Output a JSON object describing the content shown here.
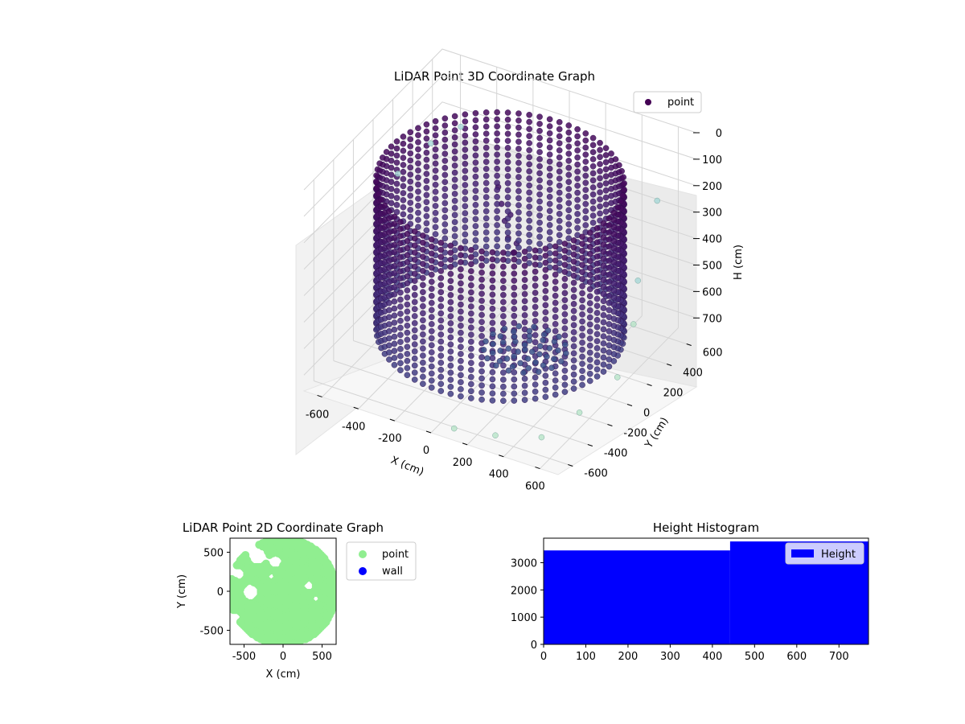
{
  "chart_data": [
    {
      "type": "scatter",
      "projection": "3d",
      "title": "LiDAR Point 3D Coordinate Graph",
      "xlabel": "X (cm)",
      "ylabel": "Y (cm)",
      "zlabel": "H (cm)",
      "xlim": [
        -700,
        700
      ],
      "ylim": [
        -700,
        700
      ],
      "zlim": [
        0,
        760
      ],
      "z_inverted": true,
      "x_ticks": [
        "-600",
        "-400",
        "-200",
        "0",
        "200",
        "400",
        "600"
      ],
      "y_ticks": [
        "-600",
        "-400",
        "-200",
        "0",
        "200",
        "400",
        "600"
      ],
      "z_ticks": [
        "0",
        "100",
        "200",
        "300",
        "400",
        "500",
        "600",
        "700"
      ],
      "legend": {
        "entries": [
          "point"
        ],
        "placement": "upper right"
      },
      "colormap": "viridis",
      "wall": {
        "radius": 600,
        "height_range": [
          80,
          640
        ],
        "column_count": 72,
        "points_per_column": 22,
        "color": "#440154"
      },
      "floor_cluster": {
        "center": [
          180,
          -80
        ],
        "radius": 200,
        "height": 640,
        "color": "#3b528b"
      },
      "central_structure": [
        [
          -80,
          160,
          240
        ],
        [
          -40,
          120,
          280
        ],
        [
          0,
          80,
          320
        ],
        [
          40,
          60,
          360
        ],
        [
          -120,
          200,
          200
        ],
        [
          80,
          20,
          300
        ],
        [
          -20,
          140,
          260
        ]
      ],
      "outliers": [
        {
          "x": -700,
          "y": 250,
          "h": 300,
          "color": "#a6d7d7"
        },
        {
          "x": -600,
          "y": 400,
          "h": 220,
          "color": "#a6d7d7"
        },
        {
          "x": -500,
          "y": 520,
          "h": 180,
          "color": "#a6d7d7"
        },
        {
          "x": 620,
          "y": 450,
          "h": 180,
          "color": "#a6d7d7"
        },
        {
          "x": 650,
          "y": 200,
          "h": 380,
          "color": "#a6d7d7"
        },
        {
          "x": 680,
          "y": 100,
          "h": 500,
          "color": "#b7e4c7"
        },
        {
          "x": 700,
          "y": -100,
          "h": 620,
          "color": "#b7e4c7"
        },
        {
          "x": 600,
          "y": -300,
          "h": 700,
          "color": "#b7e4c7"
        },
        {
          "x": 500,
          "y": -500,
          "h": 740,
          "color": "#b7e4c7"
        },
        {
          "x": 300,
          "y": -600,
          "h": 740,
          "color": "#b7e4c7"
        },
        {
          "x": 100,
          "y": -650,
          "h": 740,
          "color": "#b7e4c7"
        }
      ]
    },
    {
      "type": "scatter",
      "title": "LiDAR Point 2D Coordinate Graph",
      "xlabel": "X (cm)",
      "ylabel": "Y (cm)",
      "xlim": [
        -680,
        680
      ],
      "ylim": [
        -680,
        680
      ],
      "x_ticks": [
        "-500",
        "0",
        "500"
      ],
      "y_ticks": [
        "500",
        "0",
        "-500"
      ],
      "legend": {
        "entries": [
          "point",
          "wall"
        ],
        "colors": [
          "#90ee90",
          "#0000ff"
        ],
        "placement": "outside right"
      },
      "point_color": "#90ee90",
      "wall_color": "#0000ff",
      "gaps": [
        {
          "x": -330,
          "y": 450,
          "r": 140
        },
        {
          "x": -100,
          "y": 380,
          "r": 110
        },
        {
          "x": -560,
          "y": 220,
          "r": 100
        },
        {
          "x": -420,
          "y": -10,
          "r": 130
        },
        {
          "x": 330,
          "y": 70,
          "r": 90
        },
        {
          "x": 420,
          "y": -90,
          "r": 70
        },
        {
          "x": -600,
          "y": -330,
          "r": 80
        },
        {
          "x": -150,
          "y": 190,
          "r": 70
        }
      ]
    },
    {
      "type": "bar",
      "title": "Height Histogram",
      "xlim": [
        0,
        770
      ],
      "ylim": [
        0,
        3900
      ],
      "x_ticks": [
        "0",
        "100",
        "200",
        "300",
        "400",
        "500",
        "600",
        "700"
      ],
      "y_ticks": [
        "0",
        "1000",
        "2000",
        "3000"
      ],
      "legend": {
        "entries": [
          "Height"
        ],
        "placement": "upper right"
      },
      "bins": [
        {
          "start": 0,
          "end": 442,
          "count": 3450
        },
        {
          "start": 442,
          "end": 770,
          "count": 3780
        }
      ],
      "color": "#0000ff"
    }
  ]
}
